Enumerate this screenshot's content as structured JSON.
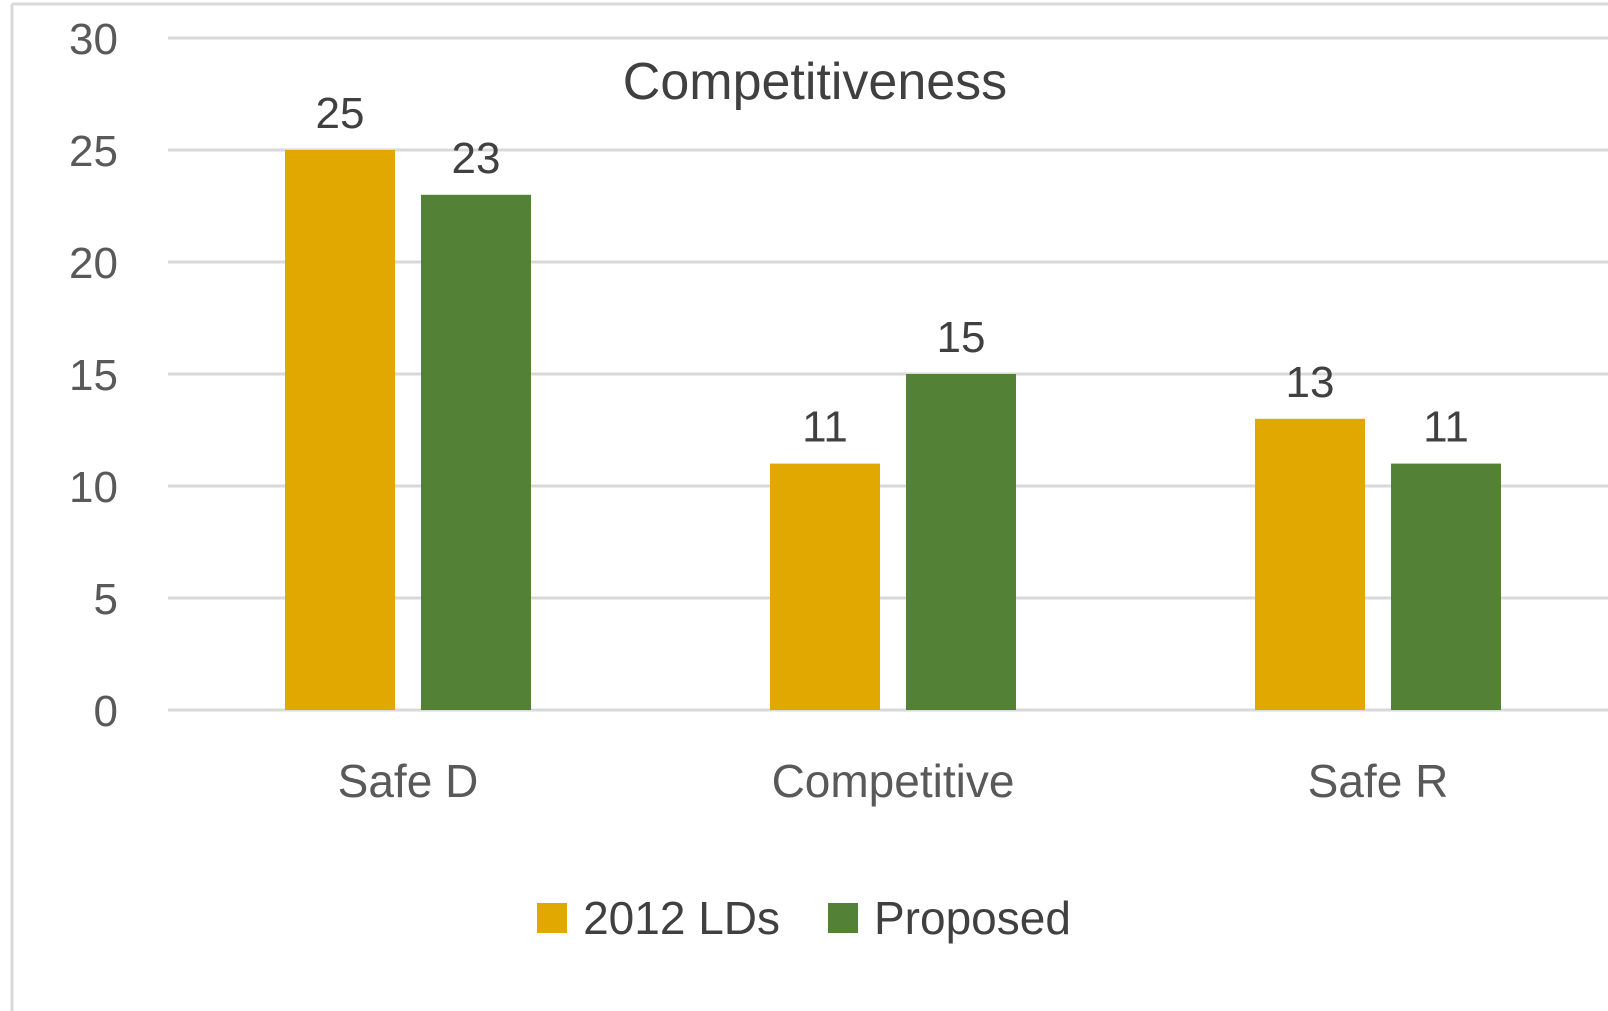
{
  "chart_data": {
    "type": "bar",
    "title": "Competitiveness",
    "categories": [
      "Safe D",
      "Competitive",
      "Safe R"
    ],
    "series": [
      {
        "name": "2012 LDs",
        "values": [
          25,
          11,
          13
        ],
        "color": "#E0A800"
      },
      {
        "name": "Proposed",
        "values": [
          23,
          15,
          11
        ],
        "color": "#538135"
      }
    ],
    "ylim": [
      0,
      30
    ],
    "yticks": [
      "0",
      "5",
      "10",
      "15",
      "20",
      "25",
      "30"
    ],
    "grid": true,
    "legend_position": "bottom",
    "data_labels": true
  }
}
